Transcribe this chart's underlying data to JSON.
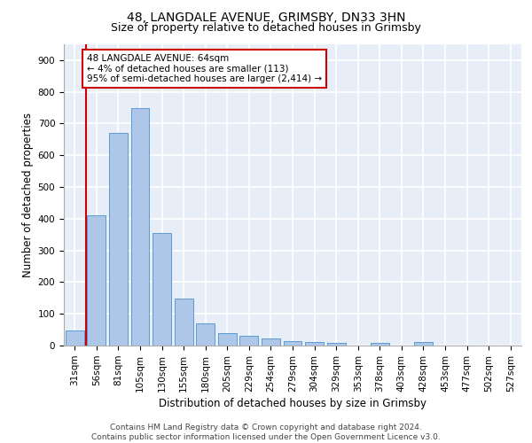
{
  "title_line1": "48, LANGDALE AVENUE, GRIMSBY, DN33 3HN",
  "title_line2": "Size of property relative to detached houses in Grimsby",
  "xlabel": "Distribution of detached houses by size in Grimsby",
  "ylabel": "Number of detached properties",
  "categories": [
    "31sqm",
    "56sqm",
    "81sqm",
    "105sqm",
    "130sqm",
    "155sqm",
    "180sqm",
    "205sqm",
    "229sqm",
    "254sqm",
    "279sqm",
    "304sqm",
    "329sqm",
    "353sqm",
    "378sqm",
    "403sqm",
    "428sqm",
    "453sqm",
    "477sqm",
    "502sqm",
    "527sqm"
  ],
  "values": [
    48,
    410,
    670,
    750,
    355,
    148,
    70,
    38,
    30,
    22,
    15,
    10,
    8,
    0,
    8,
    0,
    10,
    0,
    0,
    0,
    0
  ],
  "bar_color": "#aec6e8",
  "bar_edge_color": "#5b9bd5",
  "vline_color": "#cc0000",
  "annotation_text": "48 LANGDALE AVENUE: 64sqm\n← 4% of detached houses are smaller (113)\n95% of semi-detached houses are larger (2,414) →",
  "annotation_box_color": "#ffffff",
  "annotation_box_edge_color": "#cc0000",
  "ylim": [
    0,
    950
  ],
  "yticks": [
    0,
    100,
    200,
    300,
    400,
    500,
    600,
    700,
    800,
    900
  ],
  "footer_line1": "Contains HM Land Registry data © Crown copyright and database right 2024.",
  "footer_line2": "Contains public sector information licensed under the Open Government Licence v3.0.",
  "background_color": "#e8eef8",
  "grid_color": "#ffffff",
  "title_fontsize": 10,
  "subtitle_fontsize": 9,
  "axis_label_fontsize": 8.5,
  "tick_fontsize": 7.5,
  "footer_fontsize": 6.5
}
